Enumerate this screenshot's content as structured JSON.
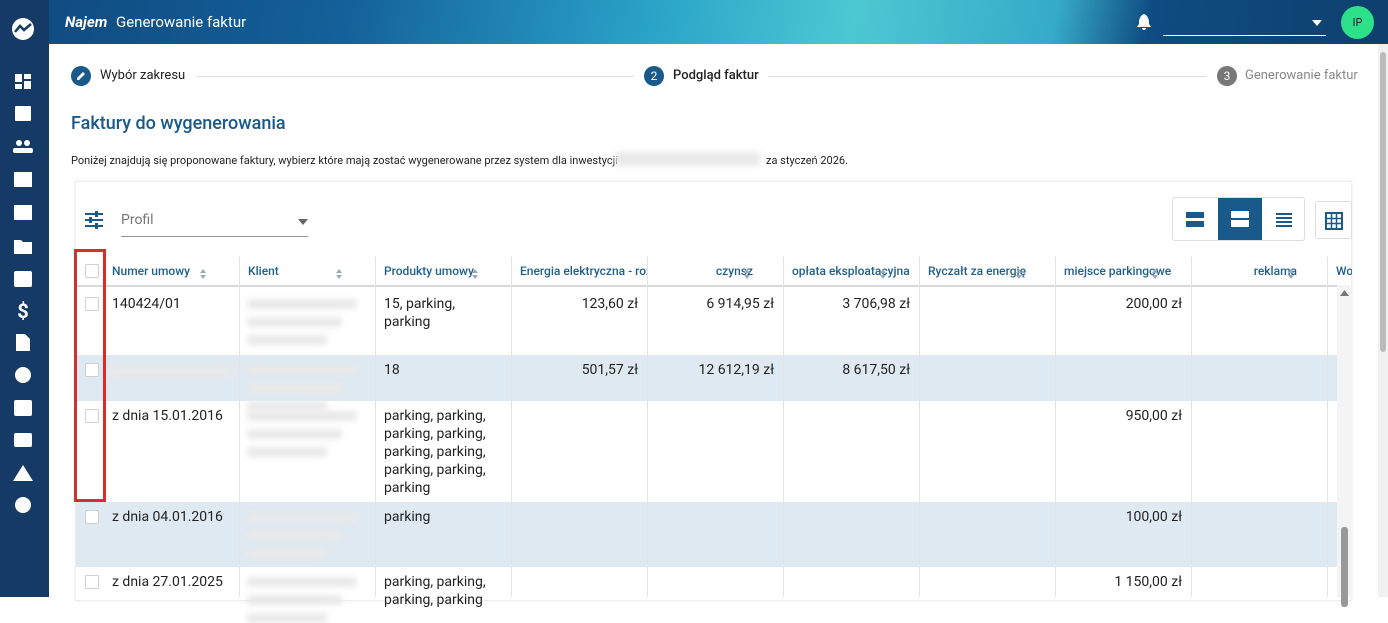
{
  "header": {
    "brand": "Najem",
    "title": "Generowanie faktur",
    "avatar": "IP"
  },
  "stepper": {
    "steps": [
      {
        "label": "Wybór zakresu"
      },
      {
        "number": 2,
        "label": "Podgląd faktur"
      },
      {
        "number": 3,
        "label": "Generowanie faktur"
      }
    ]
  },
  "page": {
    "title": "Faktury do wygenerowania",
    "description": "Poniżej znajdują się proponowane faktury, wybierz które mają zostać wygenerowane przez system dla inwestycji",
    "period": "za styczeń 2026."
  },
  "filter": {
    "label": "Profil"
  },
  "table": {
    "columns": [
      "Numer umowy",
      "Klient",
      "Produkty umowy",
      "Energia elektryczna - roz",
      "czynsz",
      "opłata eksploatacyjna",
      "Ryczałt za energię",
      "miejsce parkingowe",
      "reklama",
      "Wo"
    ],
    "rows": [
      [
        "140424/01",
        null,
        "15, parking, parking",
        "123,60 zł",
        "6 914,95 zł",
        "3 706,98 zł",
        null,
        "200,00 zł",
        null
      ],
      [
        null,
        null,
        "18",
        "501,57 zł",
        "12 612,19 zł",
        "8 617,50 zł",
        null,
        null,
        null
      ],
      [
        "z dnia 15.01.2016",
        null,
        "parking, parking, parking, parking, parking, parking, parking, parking, parking",
        null,
        null,
        null,
        null,
        "950,00 zł",
        null
      ],
      [
        "z dnia 04.01.2016",
        null,
        "parking",
        null,
        null,
        null,
        null,
        "100,00 zł",
        null
      ],
      [
        "z dnia 27.01.2025",
        null,
        "parking, parking, parking, parking",
        null,
        null,
        null,
        null,
        "1 150,00 zł",
        null
      ]
    ]
  }
}
